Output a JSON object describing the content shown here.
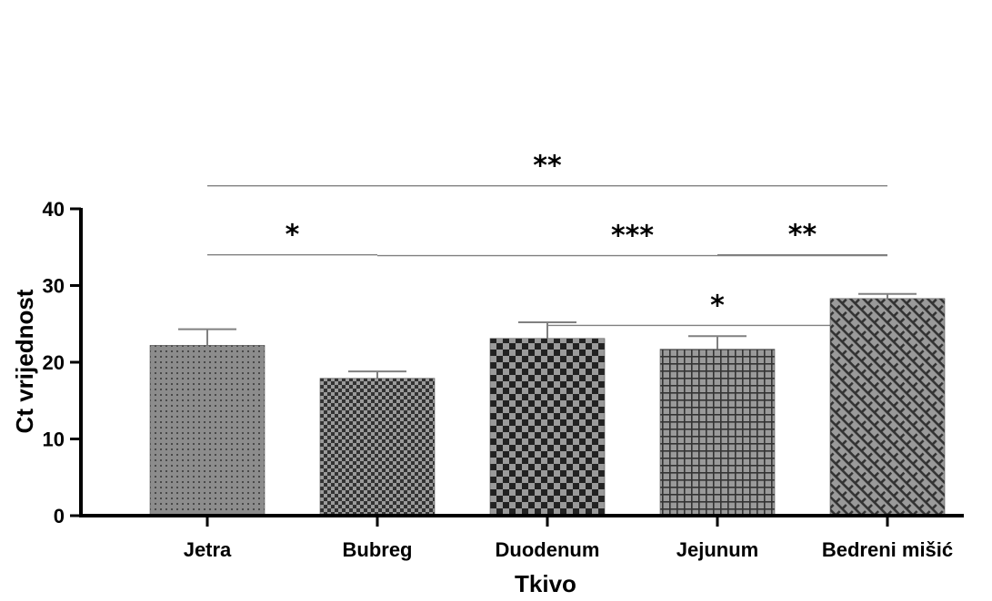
{
  "chart_data": {
    "type": "bar",
    "title": "",
    "xlabel": "Tkivo",
    "ylabel": "Ct vrijednost",
    "ylim": [
      0,
      40
    ],
    "yticks": [
      0,
      10,
      20,
      30,
      40
    ],
    "categories": [
      "Jetra",
      "Bubreg",
      "Duodenum",
      "Jejunum",
      "Bedreni mišić"
    ],
    "values": [
      22.2,
      17.9,
      23.1,
      21.7,
      28.3
    ],
    "errors": [
      2.1,
      0.9,
      2.1,
      1.7,
      0.6
    ],
    "patterns": [
      "dots",
      "fine-checker",
      "checker",
      "grid",
      "weave"
    ],
    "bar_fill": "#808080",
    "pattern_color": "#333333",
    "error_bar_color": "#808080",
    "significance": [
      {
        "from": 0,
        "to": 4,
        "label": "**",
        "y": 43.0
      },
      {
        "from": 1,
        "to": 4,
        "label": "***",
        "y": 33.9
      },
      {
        "from": 2,
        "to": 4,
        "label": "*",
        "y": 24.8
      },
      {
        "from": 0,
        "to": 1,
        "label": "*",
        "y": 34.0
      },
      {
        "from": 3,
        "to": 4,
        "label": "**",
        "y": 34.0
      }
    ],
    "grid": false,
    "legend": "none"
  }
}
